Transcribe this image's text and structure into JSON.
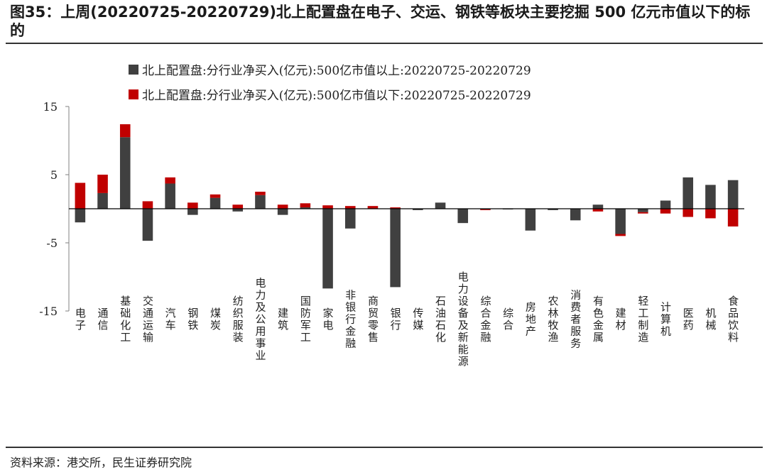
{
  "page": {
    "title": "图35：上周(20220725-20220729)北上配置盘在电子、交运、钢铁等板块主要挖掘 500 亿元市值以下的标的",
    "source": "资料来源：港交所，民生证券研究院"
  },
  "chart_data": {
    "type": "bar",
    "stacked": true,
    "title": "",
    "xlabel": "",
    "ylabel": "",
    "ylim": [
      -15,
      15
    ],
    "yticks": [
      15,
      5,
      -5,
      -15
    ],
    "grid": false,
    "legend_position": "top",
    "categories": [
      "电子",
      "通信",
      "基础化工",
      "交通运输",
      "汽车",
      "钢铁",
      "煤炭",
      "纺织服装",
      "电力及公用事业",
      "建筑",
      "国防军工",
      "家电",
      "非银行金融",
      "商贸零售",
      "银行",
      "传媒",
      "石油石化",
      "电力设备及新能源",
      "综合金融",
      "综合",
      "房地产",
      "农林牧渔",
      "消费者服务",
      "有色金属",
      "建材",
      "轻工制造",
      "计算机",
      "医药",
      "机械",
      "食品饮料"
    ],
    "series": [
      {
        "name": "北上配置盘:分行业净买入(亿元):500亿市值以上:20220725-20220729",
        "color": "#404040",
        "values": [
          -2.0,
          2.3,
          10.5,
          -4.7,
          3.7,
          -0.9,
          1.6,
          -0.4,
          2.0,
          -0.9,
          0.2,
          -11.7,
          -2.9,
          0.0,
          -11.5,
          -0.2,
          0.9,
          -2.1,
          -0.1,
          -0.1,
          -3.2,
          -0.2,
          -1.7,
          0.6,
          -3.7,
          -0.5,
          1.2,
          4.6,
          3.5,
          4.2
        ]
      },
      {
        "name": "北上配置盘:分行业净买入(亿元):500亿市值以下:20220725-20220729",
        "color": "#c00000",
        "values": [
          3.8,
          2.7,
          1.9,
          1.1,
          0.9,
          0.9,
          0.5,
          0.6,
          0.5,
          0.6,
          0.6,
          0.5,
          0.4,
          0.4,
          0.2,
          0.0,
          0.0,
          0.0,
          -0.1,
          0.0,
          0.0,
          0.0,
          0.0,
          -0.4,
          -0.3,
          -0.2,
          -0.7,
          -1.2,
          -1.4,
          -2.6
        ]
      }
    ]
  }
}
